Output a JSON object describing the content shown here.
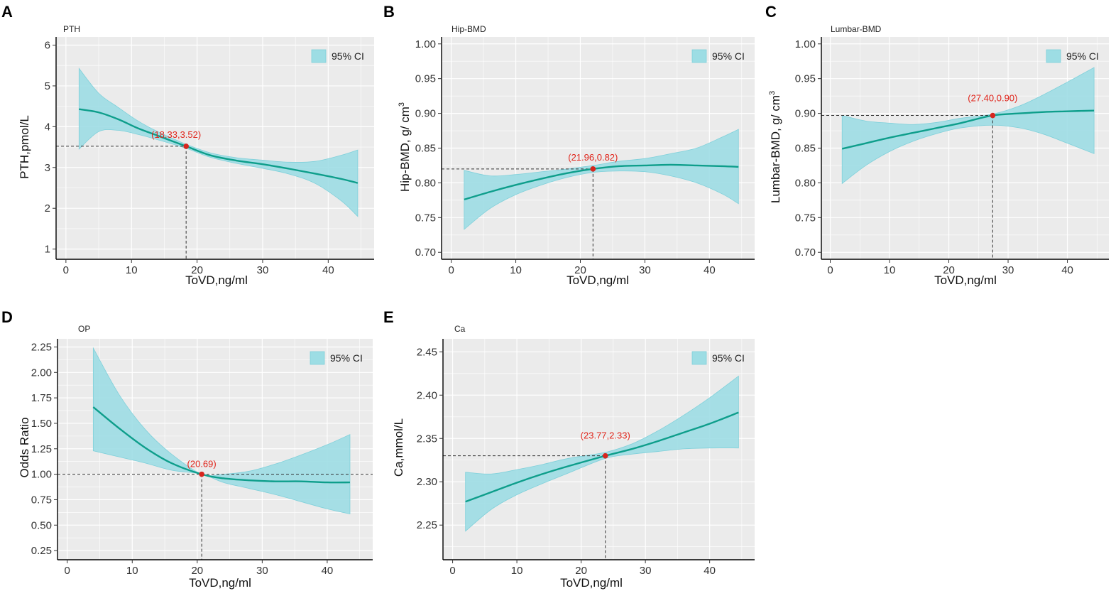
{
  "figure": {
    "colors": {
      "panel_bg": "#ebebeb",
      "grid": "#ffffff",
      "ci_fill": "#9ddde4",
      "ci_stroke": "#7fd0da",
      "curve": "#0e9e8b",
      "point": "#d7261e",
      "point_label": "#e0251b",
      "ref_line": "#333333"
    }
  },
  "chart_data": [
    {
      "panel": "A",
      "type": "line",
      "title": "PTH",
      "xlabel": "ToVD,ng/ml",
      "ylabel": "PTH,pmol/L",
      "legend": "95% CI",
      "legend_position": "top-right",
      "xlim": [
        -1.5,
        47
      ],
      "ylim": [
        0.75,
        6.2
      ],
      "xticks": [
        "0",
        "10",
        "20",
        "30",
        "40"
      ],
      "yticks": [
        "1",
        "2",
        "3",
        "4",
        "5",
        "6"
      ],
      "x": [
        2,
        5,
        8,
        11,
        14,
        18.33,
        22,
        26,
        30,
        34,
        38,
        42,
        44.5
      ],
      "y": [
        4.43,
        4.35,
        4.18,
        3.96,
        3.78,
        3.52,
        3.3,
        3.17,
        3.08,
        2.97,
        2.85,
        2.72,
        2.62
      ],
      "ci_lower": [
        3.45,
        3.88,
        3.91,
        3.81,
        3.68,
        3.47,
        3.25,
        3.1,
        2.98,
        2.84,
        2.61,
        2.18,
        1.8
      ],
      "ci_upper": [
        5.43,
        4.82,
        4.47,
        4.14,
        3.88,
        3.57,
        3.36,
        3.24,
        3.18,
        3.13,
        3.15,
        3.3,
        3.43
      ],
      "highlight": {
        "x": 18.33,
        "y": 3.52,
        "label": "(18.33,3.52)"
      }
    },
    {
      "panel": "B",
      "type": "line",
      "title": "Hip-BMD",
      "xlabel": "ToVD,ng/ml",
      "ylabel": "Hip-BMD, g/ cm",
      "ylabel_sup": "3",
      "legend": "95% CI",
      "legend_position": "top-right",
      "xlim": [
        -1.5,
        47
      ],
      "ylim": [
        0.69,
        1.01
      ],
      "xticks": [
        "0",
        "10",
        "20",
        "30",
        "40"
      ],
      "yticks": [
        "0.70",
        "0.75",
        "0.80",
        "0.85",
        "0.90",
        "0.95",
        "1.00"
      ],
      "x": [
        2,
        6,
        10,
        14,
        18,
        21.96,
        26,
        30,
        34,
        38,
        42,
        44.5
      ],
      "y": [
        0.776,
        0.787,
        0.797,
        0.806,
        0.814,
        0.82,
        0.824,
        0.825,
        0.826,
        0.825,
        0.824,
        0.823
      ],
      "ci_lower": [
        0.733,
        0.763,
        0.783,
        0.797,
        0.808,
        0.815,
        0.817,
        0.816,
        0.81,
        0.8,
        0.784,
        0.77
      ],
      "ci_upper": [
        0.818,
        0.81,
        0.812,
        0.816,
        0.82,
        0.825,
        0.831,
        0.835,
        0.842,
        0.85,
        0.866,
        0.877
      ],
      "highlight": {
        "x": 21.96,
        "y": 0.82,
        "label": "(21.96,0.82)"
      }
    },
    {
      "panel": "C",
      "type": "line",
      "title": "Lumbar-BMD",
      "xlabel": "ToVD,ng/ml",
      "ylabel": "Lumbar-BMD, g/ cm",
      "ylabel_sup": "3",
      "legend": "95% CI",
      "legend_position": "top-right",
      "xlim": [
        -1.5,
        47
      ],
      "ylim": [
        0.69,
        1.01
      ],
      "xticks": [
        "0",
        "10",
        "20",
        "30",
        "40"
      ],
      "yticks": [
        "0.70",
        "0.75",
        "0.80",
        "0.85",
        "0.90",
        "0.95",
        "1.00"
      ],
      "x": [
        2,
        6,
        10,
        14,
        18,
        22,
        27.4,
        32,
        36,
        40,
        44.5
      ],
      "y": [
        0.849,
        0.857,
        0.865,
        0.872,
        0.879,
        0.886,
        0.897,
        0.9,
        0.902,
        0.903,
        0.904
      ],
      "ci_lower": [
        0.799,
        0.825,
        0.845,
        0.86,
        0.871,
        0.879,
        0.883,
        0.879,
        0.87,
        0.857,
        0.842
      ],
      "ci_upper": [
        0.897,
        0.889,
        0.886,
        0.884,
        0.887,
        0.893,
        0.899,
        0.911,
        0.927,
        0.945,
        0.966
      ],
      "highlight": {
        "x": 27.4,
        "y": 0.897,
        "label": "(27.40,0.90)"
      }
    },
    {
      "panel": "D",
      "type": "line",
      "title": "OP",
      "xlabel": "ToVD,ng/ml",
      "ylabel": "Odds Ratio",
      "legend": "95% CI",
      "legend_position": "top-right",
      "xlim": [
        -1.5,
        47
      ],
      "ylim": [
        0.16,
        2.33
      ],
      "xticks": [
        "0",
        "10",
        "20",
        "30",
        "40"
      ],
      "yticks": [
        "0.25",
        "0.50",
        "0.75",
        "1.00",
        "1.25",
        "1.50",
        "1.75",
        "2.00",
        "2.25"
      ],
      "x": [
        4,
        8,
        12,
        16,
        20.69,
        24,
        28,
        32,
        36,
        40,
        43.5
      ],
      "y": [
        1.66,
        1.45,
        1.26,
        1.11,
        1.0,
        0.96,
        0.94,
        0.93,
        0.93,
        0.92,
        0.92
      ],
      "ci_lower": [
        1.23,
        1.17,
        1.11,
        1.04,
        1.0,
        0.92,
        0.86,
        0.8,
        0.73,
        0.66,
        0.61
      ],
      "ci_upper": [
        2.24,
        1.78,
        1.44,
        1.2,
        1.0,
        1.0,
        1.03,
        1.1,
        1.19,
        1.29,
        1.39
      ],
      "highlight": {
        "x": 20.69,
        "y": 1.0,
        "label": "(20.69)"
      },
      "reference_line_y": 1.0
    },
    {
      "panel": "E",
      "type": "line",
      "title": "Ca",
      "xlabel": "ToVD,ng/ml",
      "ylabel": "Ca,mmol/L",
      "legend": "95% CI",
      "legend_position": "top-right",
      "xlim": [
        -1.5,
        47
      ],
      "ylim": [
        2.21,
        2.465
      ],
      "xticks": [
        "0",
        "10",
        "20",
        "30",
        "40"
      ],
      "yticks": [
        "2.25",
        "2.30",
        "2.35",
        "2.40",
        "2.45"
      ],
      "x": [
        2,
        6,
        10,
        14,
        18,
        23.77,
        28,
        32,
        36,
        40,
        44.5
      ],
      "y": [
        2.277,
        2.288,
        2.299,
        2.309,
        2.318,
        2.33,
        2.338,
        2.347,
        2.357,
        2.367,
        2.38
      ],
      "ci_lower": [
        2.243,
        2.268,
        2.285,
        2.298,
        2.31,
        2.327,
        2.332,
        2.335,
        2.338,
        2.339,
        2.339
      ],
      "ci_upper": [
        2.311,
        2.309,
        2.314,
        2.32,
        2.327,
        2.334,
        2.344,
        2.359,
        2.377,
        2.397,
        2.422
      ],
      "highlight": {
        "x": 23.77,
        "y": 2.33,
        "label": "(23.77,2.33)"
      }
    }
  ]
}
